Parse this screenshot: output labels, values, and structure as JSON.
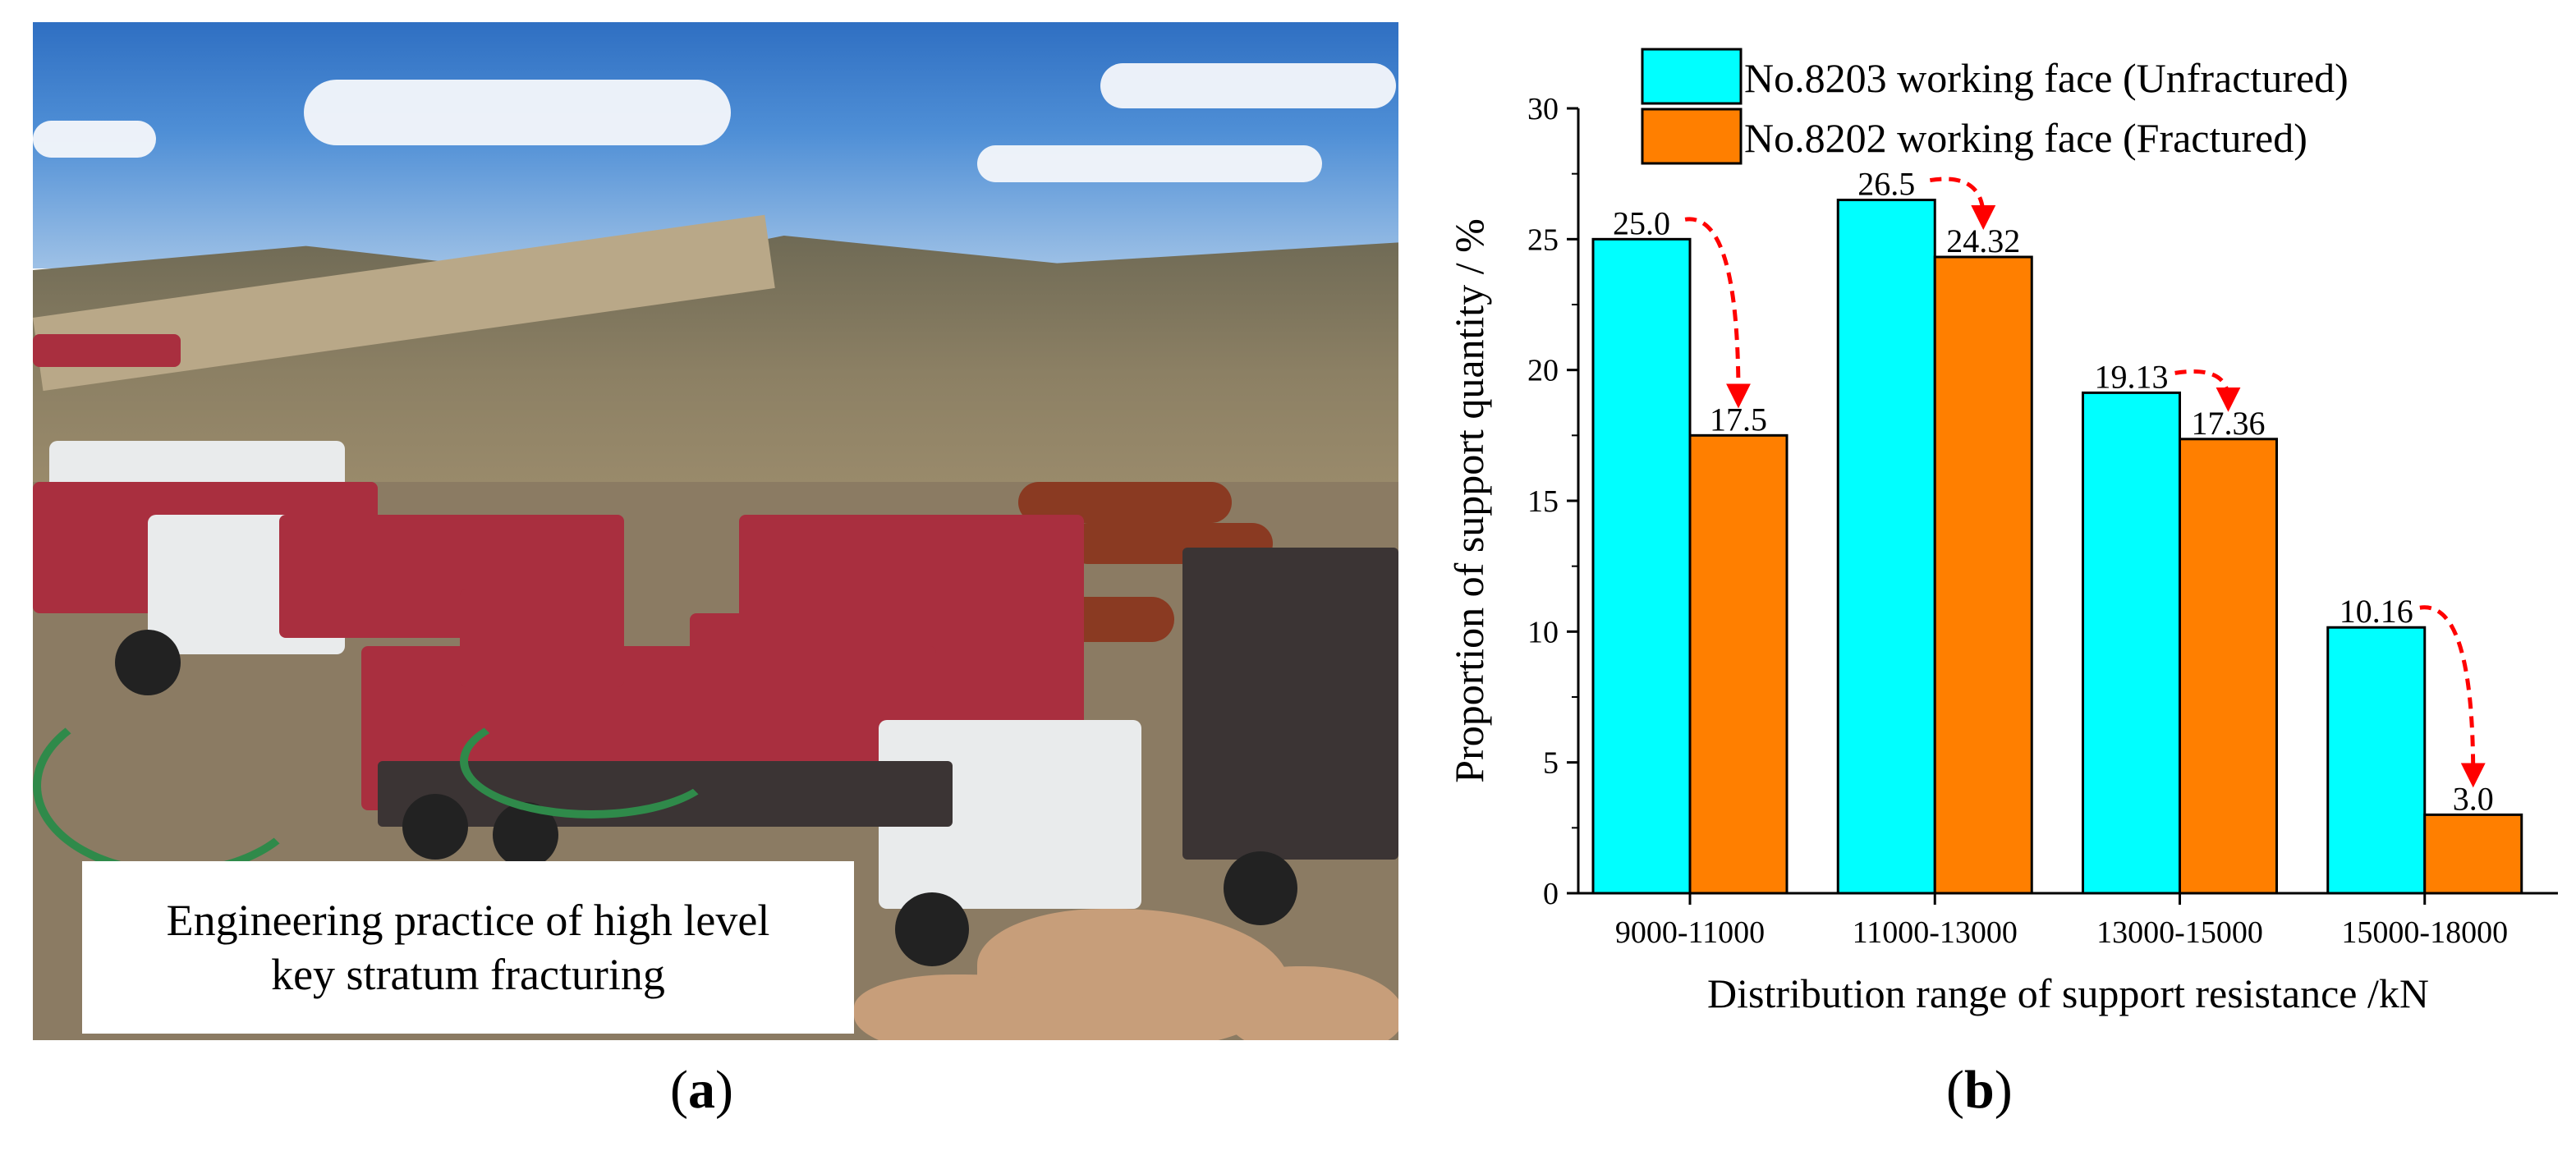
{
  "panel_a": {
    "caption_line1": "Engineering practice of high level",
    "caption_line2": "key stratum fracturing",
    "label_open": "(",
    "label_letter": "a",
    "label_close": ")"
  },
  "panel_b": {
    "label_open": "(",
    "label_letter": "b",
    "label_close": ")"
  },
  "colors": {
    "unfractured": "#00ffff",
    "fractured": "#ff7f00",
    "arrow": "#ff0000"
  },
  "chart_data": {
    "type": "bar",
    "title": "",
    "xlabel": "Distribution range of support resistance /kN",
    "ylabel": "Proportion of support quantity / %",
    "ylim": [
      0,
      30
    ],
    "yticks": [
      0,
      5,
      10,
      15,
      20,
      25,
      30
    ],
    "categories": [
      "9000-11000",
      "11000-13000",
      "13000-15000",
      "15000-18000"
    ],
    "series": [
      {
        "name": "No.8203 working face (Unfractured)",
        "values": [
          25.0,
          26.5,
          19.13,
          10.16
        ],
        "labels": [
          "25.0",
          "26.5",
          "19.13",
          "10.16"
        ]
      },
      {
        "name": "No.8202 working face (Fractured)",
        "values": [
          17.5,
          24.32,
          17.36,
          3.0
        ],
        "labels": [
          "17.5",
          "24.32",
          "17.36",
          "3.0"
        ]
      }
    ],
    "legend_position": "top",
    "grid": false,
    "annotations": "dashed red arrows from each unfractured bar to the corresponding fractured bar"
  }
}
